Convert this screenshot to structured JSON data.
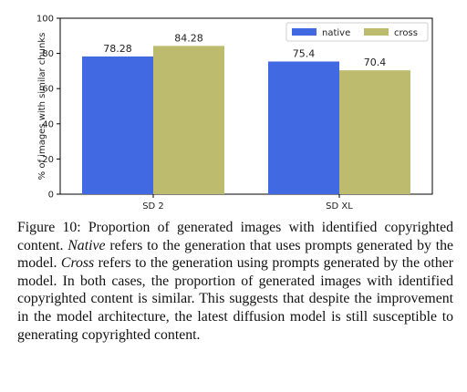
{
  "chart_data": {
    "type": "bar",
    "categories": [
      "SD 2",
      "SD XL"
    ],
    "series": [
      {
        "name": "native",
        "values": [
          78.28,
          75.4
        ],
        "color": "#4169e1"
      },
      {
        "name": "cross",
        "values": [
          84.28,
          70.4
        ],
        "color": "#bdbb6e"
      }
    ],
    "data_labels": [
      [
        "78.28",
        "75.4"
      ],
      [
        "84.28",
        "70.4"
      ]
    ],
    "ylabel": "% of images with similar chunks",
    "ylim": [
      0,
      100
    ],
    "yticks": [
      0,
      20,
      40,
      60,
      80,
      100
    ],
    "legend_position": "top-right",
    "grid": false
  },
  "caption": {
    "label": "Figure 10:",
    "text1": " Proportion of generated images with identified copyrighted content. ",
    "term_native": "Native",
    "text2": " refers to the generation that uses prompts generated by the model. ",
    "term_cross": "Cross",
    "text3": " refers to the generation using prompts generated by the other model. In both cases, the proportion of generated images with identified copyrighted content is similar. This suggests that despite the improvement in the model architecture, the latest diffusion model is still susceptible to generating copyrighted content."
  }
}
